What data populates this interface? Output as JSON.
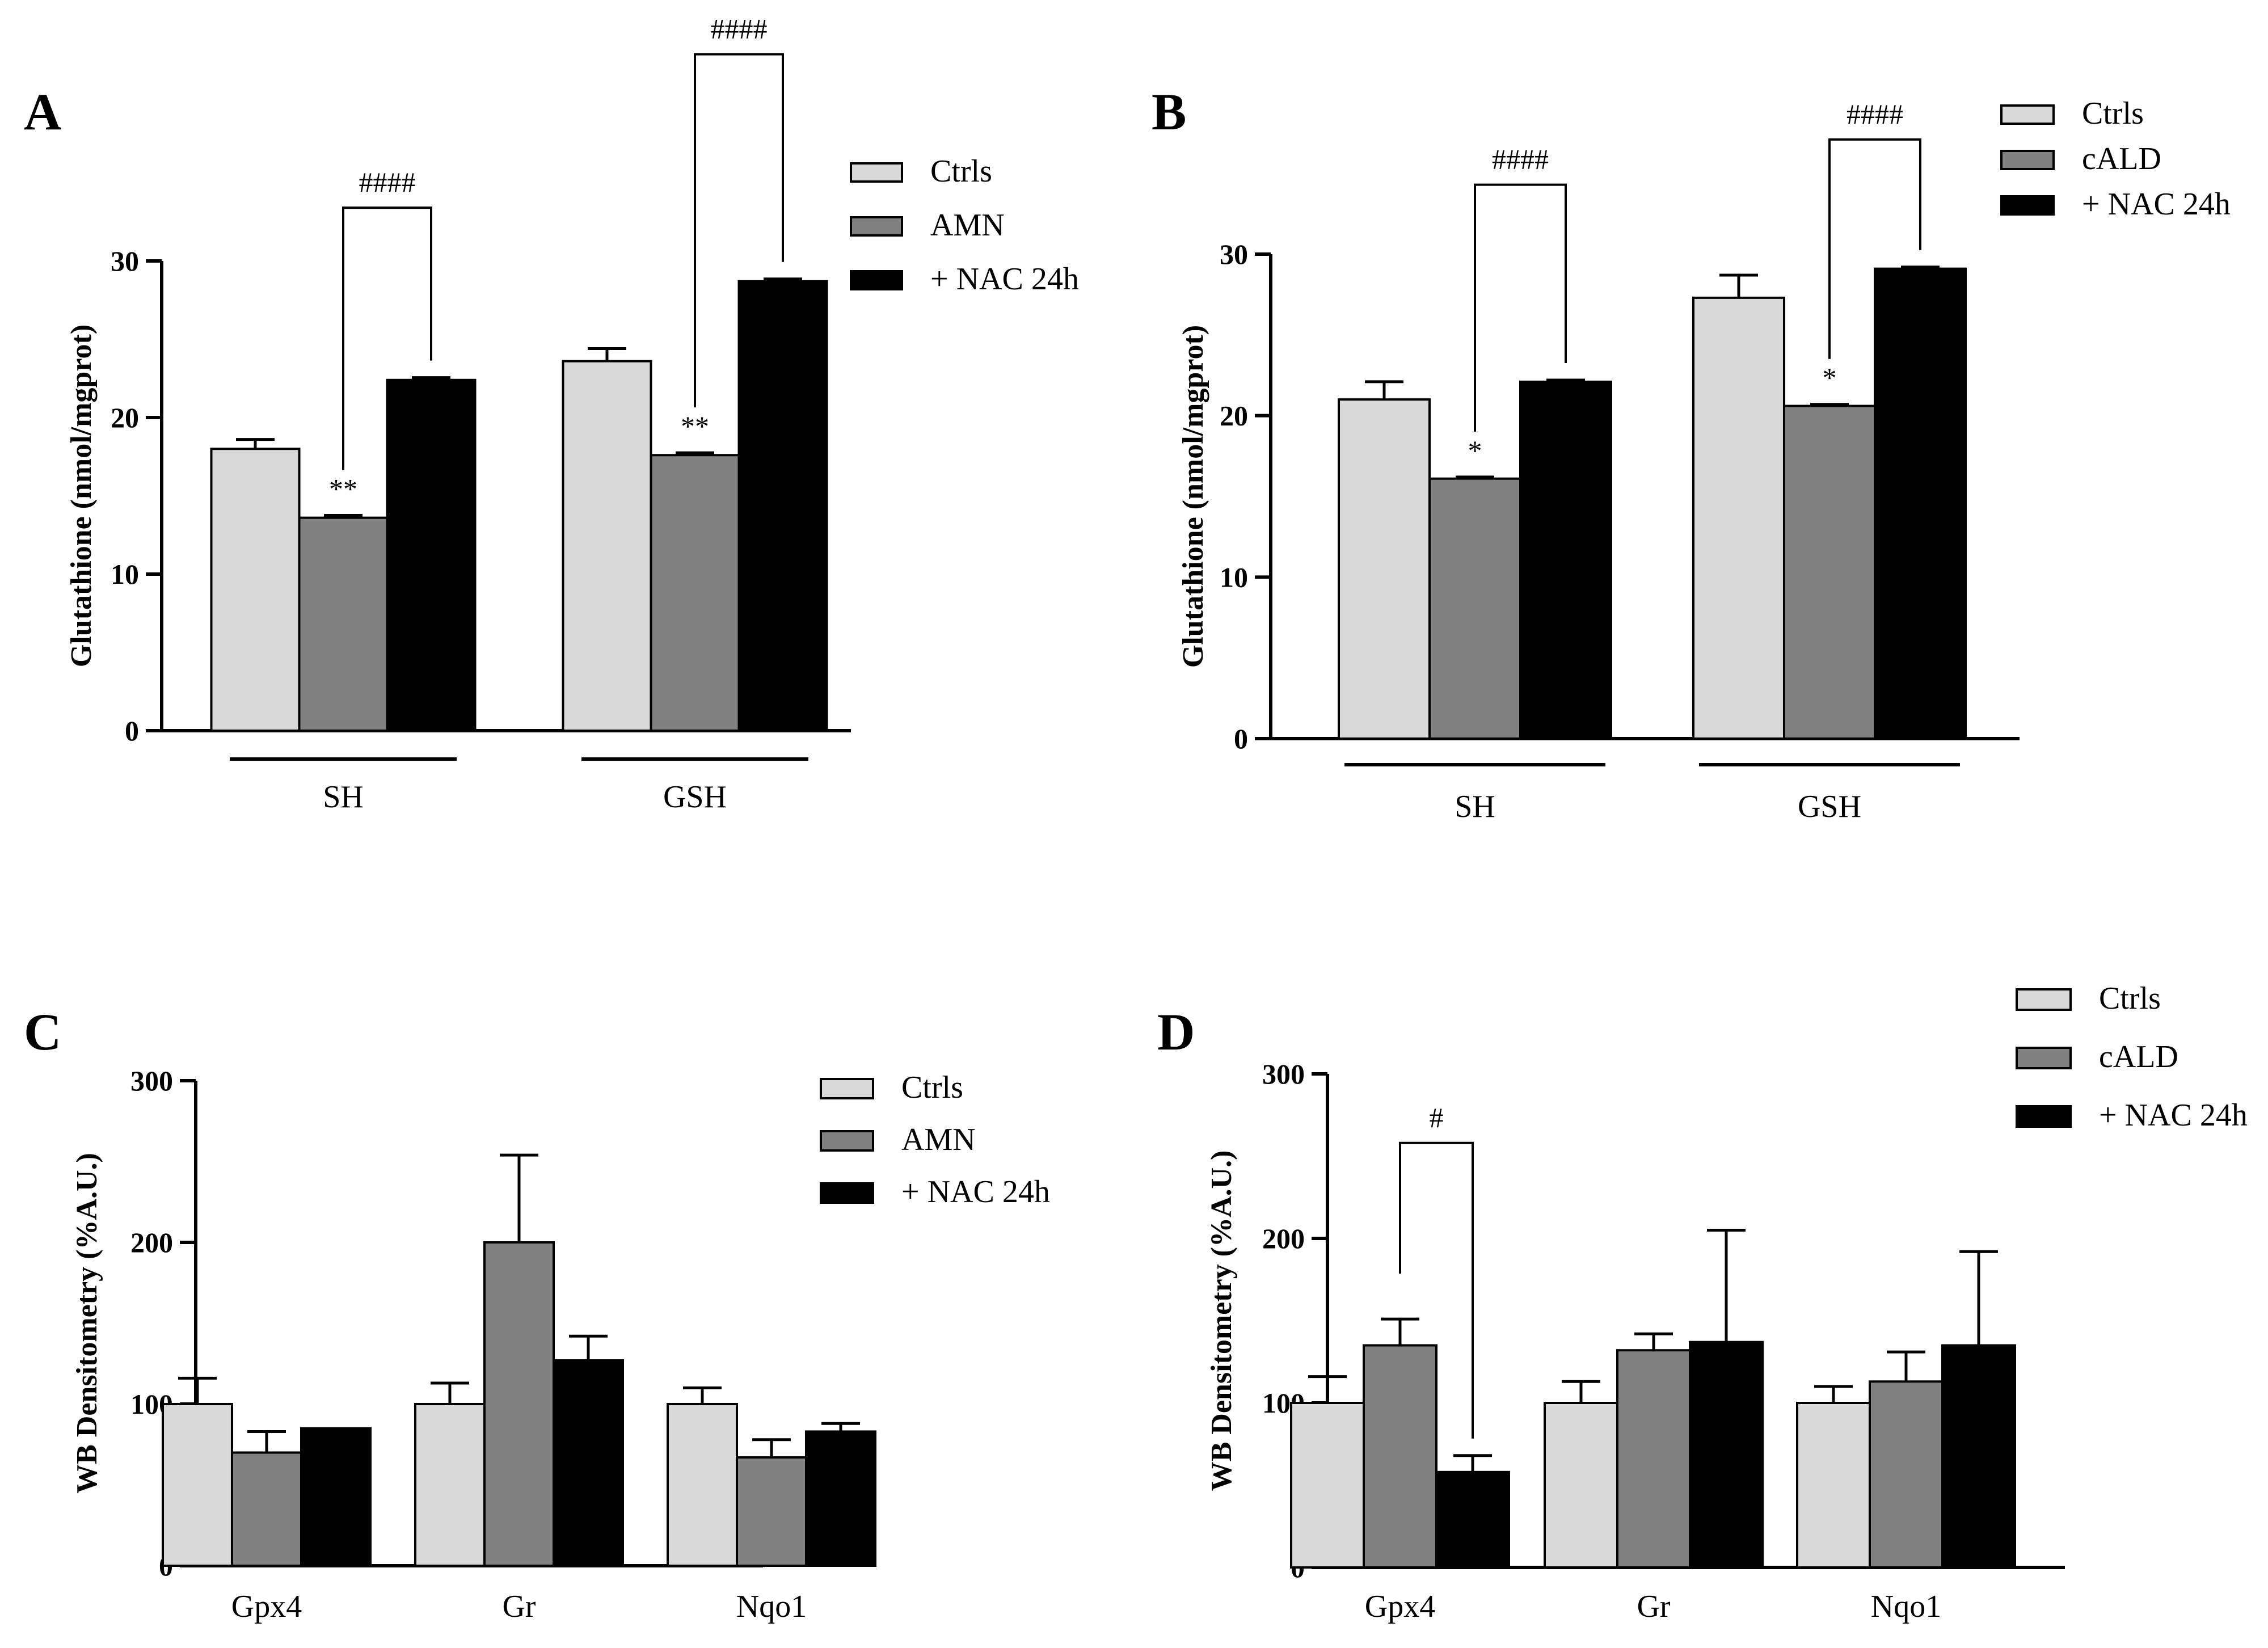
{
  "colors": {
    "Ctrls": "#d9d9d9",
    "AMN": "#808080",
    "cALD": "#808080",
    "NAC": "#000000"
  },
  "chart_data": [
    {
      "panel": "A",
      "type": "bar",
      "ylabel": "Glutathione (nmol/mgprot)",
      "ylim": [
        0,
        30
      ],
      "yticks": [
        0,
        10,
        20,
        30
      ],
      "categories": [
        "SH",
        "GSH"
      ],
      "group_underline": true,
      "legend_position": "top-right",
      "series": [
        {
          "name": "Ctrls",
          "color": "#d9d9d9",
          "values": [
            18.0,
            23.6
          ],
          "errors": [
            0.6,
            0.8
          ]
        },
        {
          "name": "AMN",
          "color": "#808080",
          "values": [
            13.6,
            17.6
          ],
          "errors": [
            0.15,
            0.15
          ]
        },
        {
          "name": "+ NAC 24h",
          "color": "#000000",
          "values": [
            22.4,
            28.7
          ],
          "errors": [
            0.15,
            0.15
          ]
        }
      ],
      "stars": [
        {
          "category": 0,
          "series": 1,
          "text": "**"
        },
        {
          "category": 1,
          "series": 1,
          "text": "**"
        }
      ],
      "brackets": [
        {
          "category": 0,
          "from": 1,
          "to": 2,
          "text": "####",
          "y": 33.4
        },
        {
          "category": 1,
          "from": 1,
          "to": 2,
          "text": "####",
          "y": 43.2
        }
      ]
    },
    {
      "panel": "B",
      "type": "bar",
      "ylabel": "Glutathione (nmol/mgprot)",
      "ylim": [
        0,
        30
      ],
      "yticks": [
        0,
        10,
        20,
        30
      ],
      "categories": [
        "SH",
        "GSH"
      ],
      "group_underline": true,
      "legend_position": "top-right",
      "series": [
        {
          "name": "Ctrls",
          "color": "#d9d9d9",
          "values": [
            21.0,
            27.3
          ],
          "errors": [
            1.1,
            1.4
          ]
        },
        {
          "name": "cALD",
          "color": "#808080",
          "values": [
            16.1,
            20.6
          ],
          "errors": [
            0.1,
            0.1
          ]
        },
        {
          "name": "+ NAC 24h",
          "color": "#000000",
          "values": [
            22.1,
            29.1
          ],
          "errors": [
            0.1,
            0.1
          ]
        }
      ],
      "stars": [
        {
          "category": 0,
          "series": 1,
          "text": "*"
        },
        {
          "category": 1,
          "series": 1,
          "text": "*"
        }
      ],
      "brackets": [
        {
          "category": 0,
          "from": 1,
          "to": 2,
          "text": "####",
          "y": 34.3
        },
        {
          "category": 1,
          "from": 1,
          "to": 2,
          "text": "####",
          "y": 37.1
        }
      ]
    },
    {
      "panel": "C",
      "type": "bar",
      "ylabel": "WB Densitometry (%A.U.)",
      "ylim": [
        0,
        300
      ],
      "yticks": [
        0,
        100,
        200,
        300
      ],
      "categories": [
        "Gpx4",
        "Gr",
        "Nqo1"
      ],
      "group_underline": false,
      "legend_position": "top-right",
      "series": [
        {
          "name": "Ctrls",
          "color": "#d9d9d9",
          "values": [
            100,
            100,
            100
          ],
          "errors": [
            16,
            13,
            10
          ]
        },
        {
          "name": "AMN",
          "color": "#808080",
          "values": [
            70,
            200,
            67
          ],
          "errors": [
            13,
            54,
            11
          ]
        },
        {
          "name": "+ NAC 24h",
          "color": "#000000",
          "values": [
            85,
            127,
            83
          ],
          "errors": [
            0,
            15,
            5
          ]
        }
      ],
      "stars": [],
      "brackets": []
    },
    {
      "panel": "D",
      "type": "bar",
      "ylabel": "WB Densitometry (%A.U.)",
      "ylim": [
        0,
        300
      ],
      "yticks": [
        0,
        100,
        200,
        300
      ],
      "categories": [
        "Gpx4",
        "Gr",
        "Nqo1"
      ],
      "group_underline": false,
      "legend_position": "top-right",
      "series": [
        {
          "name": "Ctrls",
          "color": "#d9d9d9",
          "values": [
            100,
            100,
            100
          ],
          "errors": [
            16,
            13,
            10
          ]
        },
        {
          "name": "cALD",
          "color": "#808080",
          "values": [
            135,
            132,
            113
          ],
          "errors": [
            16,
            10,
            18
          ]
        },
        {
          "name": "+ NAC 24h",
          "color": "#000000",
          "values": [
            58,
            137,
            135
          ],
          "errors": [
            10,
            68,
            57
          ]
        }
      ],
      "stars": [],
      "brackets": [
        {
          "category": 0,
          "from": 1,
          "to": 2,
          "text": "#",
          "y": 258
        }
      ]
    }
  ]
}
